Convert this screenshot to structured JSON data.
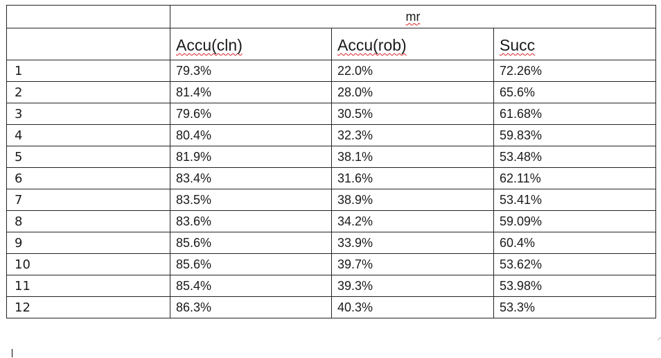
{
  "table": {
    "group_label": "mr",
    "columns": [
      "Accu(cln)",
      "Accu(rob)",
      "Succ"
    ],
    "rows": [
      [
        "1",
        "79.3%",
        "22.0%",
        "72.26%"
      ],
      [
        "2",
        "81.4%",
        "28.0%",
        "65.6%"
      ],
      [
        "3",
        "79.6%",
        "30.5%",
        "61.68%"
      ],
      [
        "4",
        "80.4%",
        "32.3%",
        "59.83%"
      ],
      [
        "5",
        "81.9%",
        "38.1%",
        "53.48%"
      ],
      [
        "6",
        "83.4%",
        "31.6%",
        "62.11%"
      ],
      [
        "7",
        "83.5%",
        "38.9%",
        "53.41%"
      ],
      [
        "8",
        "83.6%",
        "34.2%",
        "59.09%"
      ],
      [
        "9",
        "85.6%",
        "33.9%",
        "60.4%"
      ],
      [
        "10",
        "85.6%",
        "39.7%",
        "53.62%"
      ],
      [
        "11",
        "85.4%",
        "39.3%",
        "53.98%"
      ],
      [
        "12",
        "86.3%",
        "40.3%",
        "53.3%"
      ]
    ]
  }
}
